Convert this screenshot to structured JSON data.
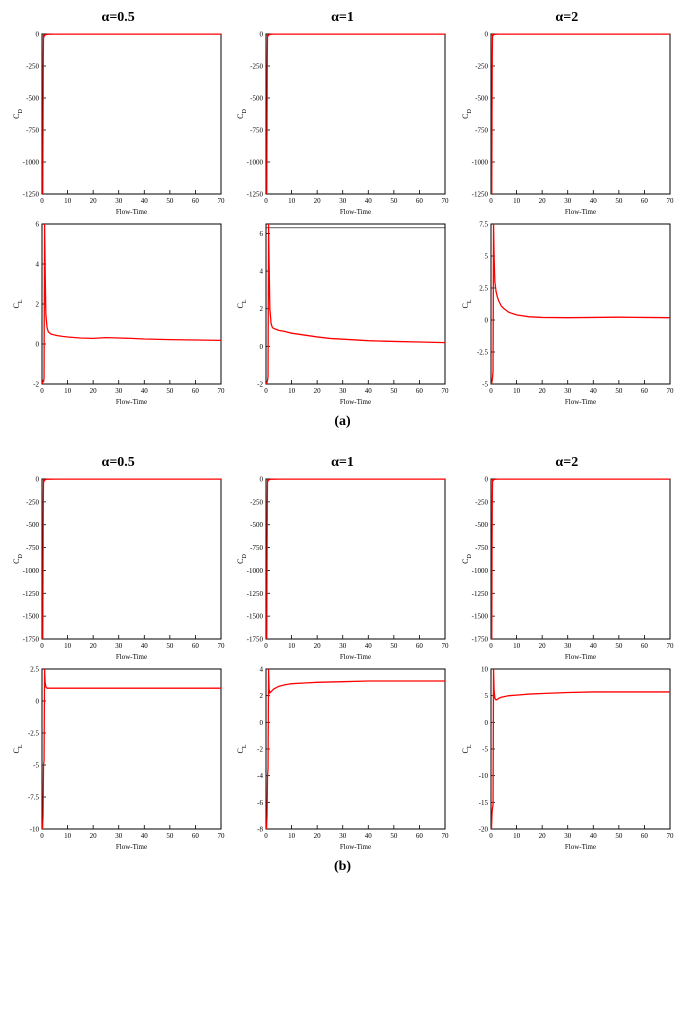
{
  "figures": [
    {
      "caption": "(a)",
      "rows": [
        {
          "titles": [
            "α=0.5",
            "α=1",
            "α=2"
          ],
          "panels": [
            {
              "xlabel": "Flow-Time",
              "ylabel": "C_D",
              "xlim": [
                0,
                70
              ],
              "ylim": [
                -1250,
                0
              ],
              "xticks": [
                0,
                10,
                20,
                30,
                40,
                50,
                60,
                70
              ],
              "yticks": [
                -1250,
                -1000,
                -750,
                -500,
                -250,
                0
              ],
              "series_color": "#ff0000",
              "background": "#ffffff",
              "data_x": [
                0.3,
                0.4,
                0.5,
                0.6,
                0.8,
                1,
                1.5,
                2,
                3,
                5,
                10,
                20,
                40,
                70
              ],
              "data_y": [
                -1250,
                -700,
                -200,
                0,
                -20,
                -10,
                -5,
                -3,
                -2,
                -1,
                -1,
                -1,
                -1,
                -1
              ]
            },
            {
              "xlabel": "Flow-Time",
              "ylabel": "C_D",
              "xlim": [
                0,
                70
              ],
              "ylim": [
                -1250,
                0
              ],
              "xticks": [
                0,
                10,
                20,
                30,
                40,
                50,
                60,
                70
              ],
              "yticks": [
                -1250,
                -1000,
                -750,
                -500,
                -250,
                0
              ],
              "series_color": "#ff0000",
              "background": "#ffffff",
              "data_x": [
                0.3,
                0.4,
                0.5,
                0.6,
                0.8,
                1,
                1.5,
                2,
                3,
                5,
                10,
                20,
                40,
                70
              ],
              "data_y": [
                -1250,
                -650,
                -180,
                0,
                -15,
                -8,
                -4,
                -2,
                -1,
                -1,
                -1,
                -1,
                -1,
                -1
              ]
            },
            {
              "xlabel": "Flow-Time",
              "ylabel": "C_D",
              "xlim": [
                0,
                70
              ],
              "ylim": [
                -1250,
                0
              ],
              "xticks": [
                0,
                10,
                20,
                30,
                40,
                50,
                60,
                70
              ],
              "yticks": [
                -1250,
                -1000,
                -750,
                -500,
                -250,
                0
              ],
              "series_color": "#ff0000",
              "background": "#ffffff",
              "data_x": [
                0.3,
                0.4,
                0.5,
                0.6,
                0.8,
                1,
                1.5,
                2,
                3,
                5,
                10,
                20,
                40,
                70
              ],
              "data_y": [
                -1250,
                -600,
                -160,
                0,
                -12,
                -6,
                -3,
                -2,
                -1,
                -1,
                -1,
                -1,
                -1,
                -1
              ]
            }
          ]
        },
        {
          "titles": [
            "",
            "",
            ""
          ],
          "panels": [
            {
              "xlabel": "Flow-Time",
              "ylabel": "C_L",
              "xlim": [
                0,
                70
              ],
              "ylim": [
                -2,
                6
              ],
              "xticks": [
                0,
                10,
                20,
                30,
                40,
                50,
                60,
                70
              ],
              "yticks": [
                -2,
                0,
                2,
                4,
                6
              ],
              "series_color": "#ff0000",
              "background": "#ffffff",
              "data_x": [
                0.2,
                0.4,
                0.6,
                0.8,
                1,
                1.2,
                1.5,
                2,
                2.5,
                3,
                3.5,
                4,
                5,
                6,
                8,
                10,
                15,
                20,
                25,
                30,
                35,
                40,
                50,
                60,
                70
              ],
              "data_y": [
                -2,
                -1.8,
                -1.9,
                -1.7,
                6,
                4,
                1.5,
                0.8,
                0.6,
                0.55,
                0.5,
                0.48,
                0.45,
                0.42,
                0.38,
                0.35,
                0.3,
                0.28,
                0.32,
                0.3,
                0.28,
                0.25,
                0.22,
                0.2,
                0.18
              ]
            },
            {
              "xlabel": "Flow-Time",
              "ylabel": "C_L",
              "xlim": [
                0,
                70
              ],
              "ylim": [
                -2,
                6.5
              ],
              "xticks": [
                0,
                10,
                20,
                30,
                40,
                50,
                60,
                70
              ],
              "yticks": [
                -2,
                0,
                2,
                4,
                6
              ],
              "series_color": "#ff0000",
              "background": "#ffffff",
              "data_x": [
                0.2,
                0.4,
                0.6,
                0.8,
                1,
                1.2,
                1.5,
                2,
                2.5,
                3,
                4,
                5,
                7,
                10,
                15,
                20,
                25,
                30,
                35,
                40,
                50,
                60,
                70
              ],
              "data_y": [
                -2,
                -1.9,
                -1.8,
                -1.6,
                6.5,
                4.5,
                2,
                1.2,
                1.0,
                0.95,
                0.9,
                0.85,
                0.8,
                0.7,
                0.6,
                0.5,
                0.42,
                0.38,
                0.34,
                0.3,
                0.26,
                0.23,
                0.2
              ],
              "top_lines": [
                6.5,
                6.3
              ]
            },
            {
              "xlabel": "Flow-Time",
              "ylabel": "C_L",
              "xlim": [
                0,
                70
              ],
              "ylim": [
                -5,
                7.5
              ],
              "xticks": [
                0,
                10,
                20,
                30,
                40,
                50,
                60,
                70
              ],
              "yticks": [
                -5,
                -2.5,
                0,
                2.5,
                5,
                7.5
              ],
              "series_color": "#ff0000",
              "background": "#ffffff",
              "data_x": [
                0.2,
                0.4,
                0.6,
                0.8,
                1,
                1.2,
                1.5,
                2,
                2.5,
                3,
                4,
                5,
                7,
                10,
                15,
                20,
                30,
                40,
                50,
                60,
                70
              ],
              "data_y": [
                -5,
                -4.8,
                -4.5,
                -4,
                7.5,
                5,
                3,
                2.2,
                1.8,
                1.5,
                1.1,
                0.9,
                0.6,
                0.4,
                0.25,
                0.2,
                0.18,
                0.2,
                0.22,
                0.2,
                0.18
              ]
            }
          ]
        }
      ]
    },
    {
      "caption": "(b)",
      "rows": [
        {
          "titles": [
            "α=0.5",
            "α=1",
            "α=2"
          ],
          "panels": [
            {
              "xlabel": "Flow-Time",
              "ylabel": "C_D",
              "xlim": [
                0,
                70
              ],
              "ylim": [
                -1750,
                0
              ],
              "xticks": [
                0,
                10,
                20,
                30,
                40,
                50,
                60,
                70
              ],
              "yticks": [
                -1750,
                -1500,
                -1250,
                -1000,
                -750,
                -500,
                -250,
                0
              ],
              "series_color": "#ff0000",
              "background": "#ffffff",
              "data_x": [
                0.3,
                0.4,
                0.5,
                0.6,
                0.8,
                1,
                1.5,
                2,
                3,
                5,
                10,
                20,
                40,
                70
              ],
              "data_y": [
                -1750,
                -950,
                -300,
                0,
                -25,
                -12,
                -6,
                -3,
                -2,
                -1,
                -1,
                -1,
                -1,
                -1
              ]
            },
            {
              "xlabel": "Flow-Time",
              "ylabel": "C_D",
              "xlim": [
                0,
                70
              ],
              "ylim": [
                -1750,
                0
              ],
              "xticks": [
                0,
                10,
                20,
                30,
                40,
                50,
                60,
                70
              ],
              "yticks": [
                -1750,
                -1500,
                -1250,
                -1000,
                -750,
                -500,
                -250,
                0
              ],
              "series_color": "#ff0000",
              "background": "#ffffff",
              "data_x": [
                0.3,
                0.4,
                0.5,
                0.6,
                0.8,
                1,
                1.5,
                2,
                3,
                5,
                10,
                20,
                40,
                70
              ],
              "data_y": [
                -1750,
                -900,
                -280,
                0,
                -20,
                -10,
                -5,
                -3,
                -2,
                -1,
                -1,
                -1,
                -1,
                -1
              ]
            },
            {
              "xlabel": "Flow-Time",
              "ylabel": "C_D",
              "xlim": [
                0,
                70
              ],
              "ylim": [
                -1750,
                0
              ],
              "xticks": [
                0,
                10,
                20,
                30,
                40,
                50,
                60,
                70
              ],
              "yticks": [
                -1750,
                -1500,
                -1250,
                -1000,
                -750,
                -500,
                -250,
                0
              ],
              "series_color": "#ff0000",
              "background": "#ffffff",
              "data_x": [
                0.3,
                0.4,
                0.5,
                0.6,
                0.8,
                1,
                1.5,
                2,
                3,
                5,
                10,
                20,
                40,
                70
              ],
              "data_y": [
                -1750,
                -850,
                -260,
                0,
                -18,
                -9,
                -4,
                -2,
                -1,
                -1,
                -1,
                -1,
                -1,
                -1
              ]
            }
          ]
        },
        {
          "titles": [
            "",
            "",
            ""
          ],
          "panels": [
            {
              "xlabel": "Flow-Time",
              "ylabel": "C_L",
              "xlim": [
                0,
                70
              ],
              "ylim": [
                -10,
                2.5
              ],
              "xticks": [
                0,
                10,
                20,
                30,
                40,
                50,
                60,
                70
              ],
              "yticks": [
                -10,
                -7.5,
                -5,
                -2.5,
                0,
                2.5
              ],
              "series_color": "#ff0000",
              "background": "#ffffff",
              "data_x": [
                0.2,
                0.4,
                0.6,
                0.8,
                1,
                1.2,
                1.5,
                2,
                2.5,
                3,
                4,
                5,
                7,
                10,
                15,
                20,
                30,
                40,
                50,
                60,
                70
              ],
              "data_y": [
                -10,
                -9,
                -5,
                -4.7,
                2.5,
                1.5,
                1.1,
                1.0,
                1.0,
                1.0,
                1.0,
                1.0,
                1.0,
                1.0,
                1.0,
                1.0,
                1.0,
                1.0,
                1.0,
                1.0,
                1.0
              ]
            },
            {
              "xlabel": "Flow-Time",
              "ylabel": "C_L",
              "xlim": [
                0,
                70
              ],
              "ylim": [
                -8,
                4
              ],
              "xticks": [
                0,
                10,
                20,
                30,
                40,
                50,
                60,
                70
              ],
              "yticks": [
                -8,
                -6,
                -4,
                -2,
                0,
                2,
                4
              ],
              "series_color": "#ff0000",
              "background": "#ffffff",
              "data_x": [
                0.2,
                0.4,
                0.6,
                0.8,
                1,
                1.2,
                1.5,
                2,
                2.5,
                3,
                4,
                5,
                7,
                10,
                15,
                20,
                30,
                40,
                50,
                60,
                70
              ],
              "data_y": [
                -8,
                -7,
                -4,
                -3.5,
                4,
                2.5,
                2.2,
                2.3,
                2.4,
                2.5,
                2.6,
                2.7,
                2.8,
                2.9,
                2.95,
                3.0,
                3.05,
                3.1,
                3.1,
                3.1,
                3.1
              ]
            },
            {
              "xlabel": "Flow-Time",
              "ylabel": "C_L",
              "xlim": [
                0,
                70
              ],
              "ylim": [
                -20,
                10
              ],
              "xticks": [
                0,
                10,
                20,
                30,
                40,
                50,
                60,
                70
              ],
              "yticks": [
                -20,
                -15,
                -10,
                -5,
                0,
                5,
                10
              ],
              "series_color": "#ff0000",
              "background": "#ffffff",
              "data_x": [
                0.2,
                0.4,
                0.6,
                0.8,
                1,
                1.2,
                1.5,
                2,
                2.5,
                3,
                4,
                5,
                7,
                10,
                15,
                20,
                30,
                40,
                50,
                60,
                70
              ],
              "data_y": [
                -20,
                -17,
                -16,
                -15.5,
                10,
                6,
                4.5,
                4.2,
                4.3,
                4.5,
                4.7,
                4.8,
                5.0,
                5.1,
                5.3,
                5.4,
                5.6,
                5.7,
                5.7,
                5.7,
                5.7
              ]
            }
          ]
        }
      ]
    }
  ],
  "styling": {
    "line_color": "#ff0000",
    "line_width": 1.3,
    "axis_color": "#000000",
    "font": "Times New Roman",
    "tick_fontsize": 7,
    "label_fontsize": 7,
    "title_fontsize": 14
  }
}
